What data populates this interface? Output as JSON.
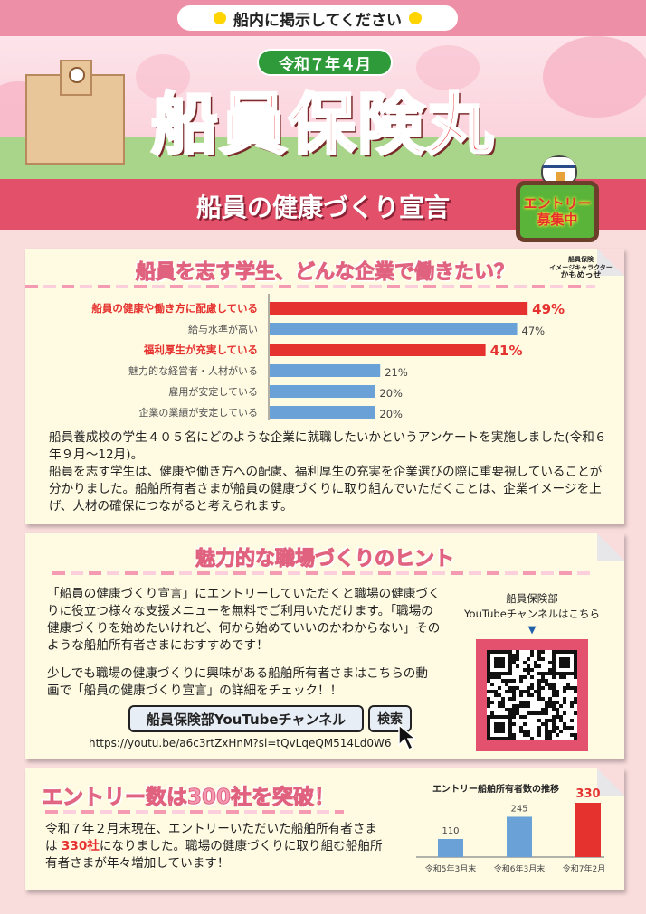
{
  "notice": {
    "text": "船内に掲示してください"
  },
  "header": {
    "date": "令和７年４月",
    "title": "船員保険丸",
    "subtitle": "船員の健康づくり宣言",
    "entry_sign": [
      "エントリー",
      "募集中"
    ],
    "mascot_credit": [
      "船員保険",
      "イメージキャラクター",
      "かもめっせ"
    ]
  },
  "section1": {
    "title": "船員を志す学生、どんな企業で働きたい？",
    "paragraphs": [
      "船員養成校の学生４０５名にどのような企業に就職したいかというアンケートを実施しました(令和６年９月～12月)。",
      "船員を志す学生は、健康や働き方への配慮、福利厚生の充実を企業選びの際に重要視していることが分かりました。船舶所有者さまが船員の健康づくりに取り組んでいただくことは、企業イメージを上げ、人材の確保につながると考えられます。"
    ]
  },
  "section2": {
    "title": "魅力的な職場づくりのヒント",
    "paragraph1": "「船員の健康づくり宣言」にエントリーしていただくと職場の健康づくりに役立つ様々な支援メニューを無料でご利用いただけます。「職場の健康づくりを始めたいけれど、何から始めていいのかわからない」そのような船舶所有者さまにおすすめです！",
    "paragraph2": "少しでも職場の健康づくりに興味がある船舶所有者さまはこちらの動画で「船員の健康づくり宣言」の詳細をチェック！！",
    "search_box": "船員保険部YouTubeチャンネル",
    "search_button": "検索",
    "url": "https://youtu.be/a6c3rtZxHnM?si=tQvLqeQM514Ld0W6",
    "qr_caption_1": "船員保険部",
    "qr_caption_2": "YouTubeチャンネルはこちら",
    "qr_arrow": "▼"
  },
  "section3": {
    "title": "エントリー数は300社を突破！",
    "text_before": "令和７年２月末現在、エントリーいただいた船舶所有者さまは ",
    "highlight": "330社",
    "text_after": "になりました。職場の健康づくりに取り組む船舶所有者さまが年々増加しています！"
  },
  "colors": {
    "highlight": "#e6322f",
    "normal": "#6aa2d8",
    "pink": "#e4516e"
  },
  "chart_data": [
    {
      "type": "bar",
      "orientation": "horizontal",
      "categories": [
        "船員の健康や働き方に配慮している",
        "給与水準が高い",
        "福利厚生が充実している",
        "魅力的な経営者・人材がいる",
        "雇用が安定している",
        "企業の業績が安定している"
      ],
      "values": [
        49,
        47,
        41,
        21,
        20,
        20
      ],
      "data_labels": [
        "49%",
        "47%",
        "41%",
        "21%",
        "20%",
        "20%"
      ],
      "highlighted": [
        true,
        false,
        true,
        false,
        false,
        false
      ],
      "xlim": [
        0,
        50
      ]
    },
    {
      "type": "bar",
      "title": "エントリー船舶所有者数の推移",
      "categories": [
        "令和5年3月末",
        "令和6年3月末",
        "令和7年2月末"
      ],
      "values": [
        110,
        245,
        330
      ],
      "data_labels": [
        "110",
        "245",
        "330"
      ],
      "highlighted": [
        false,
        false,
        true
      ],
      "ylim": [
        0,
        340
      ]
    }
  ]
}
